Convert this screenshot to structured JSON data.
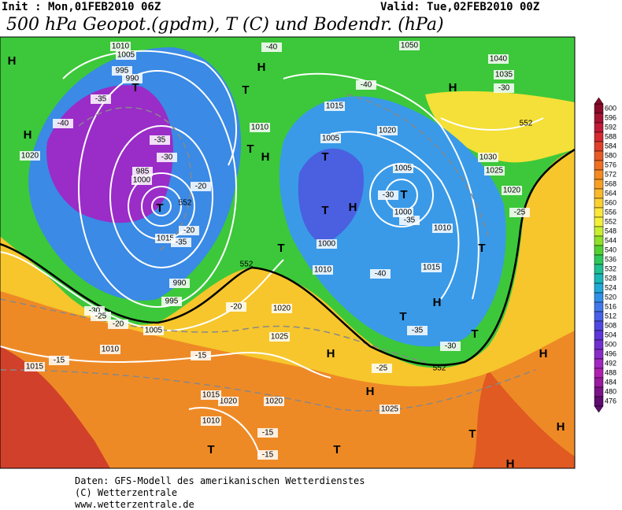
{
  "header": {
    "init": "Init : Mon,01FEB2010 06Z",
    "valid": "Valid: Tue,02FEB2010 00Z",
    "title": "500 hPa Geopot.(gpdm), T (C) und Bodendr. (hPa)"
  },
  "colorbar": {
    "labels": [
      600,
      596,
      592,
      588,
      584,
      580,
      576,
      572,
      568,
      564,
      560,
      556,
      552,
      548,
      544,
      540,
      536,
      532,
      528,
      524,
      520,
      516,
      512,
      508,
      504,
      500,
      496,
      492,
      488,
      484,
      480,
      476
    ],
    "colors": [
      "#8a0a2a",
      "#a81232",
      "#c01a36",
      "#d42a30",
      "#e0402a",
      "#e85a26",
      "#f07024",
      "#f48a22",
      "#f8a024",
      "#fab82a",
      "#fcd030",
      "#fde63a",
      "#f4f03a",
      "#c8ee30",
      "#8ee028",
      "#52d22e",
      "#2ec85a",
      "#20c090",
      "#18b8b8",
      "#20a8d8",
      "#3090e8",
      "#4078ec",
      "#4860e8",
      "#5048e0",
      "#5c36d8",
      "#7030d0",
      "#8a2cc8",
      "#a028c0",
      "#b020b0",
      "#9a1aa0",
      "#7a1488",
      "#600c70"
    ]
  },
  "map_labels": [
    "H",
    "H",
    "H",
    "H",
    "H",
    "H",
    "H",
    "H",
    "H",
    "H",
    "H",
    "H",
    "T",
    "T",
    "T",
    "T",
    "T",
    "T",
    "T",
    "T",
    "T",
    "T",
    "T",
    "T",
    "T",
    "T",
    "1010",
    "1005",
    "995",
    "990",
    "1020",
    "1030",
    "1040",
    "1035",
    "1050",
    "1025",
    "1020",
    "1015",
    "1010",
    "1005",
    "1000",
    "985",
    "1000",
    "1005",
    "1010",
    "1015",
    "1020",
    "1025",
    "1020",
    "1015",
    "1010",
    "1020",
    "1025",
    "1015",
    "1010",
    "1020",
    "1015",
    "1010",
    "1005",
    "1000",
    "995",
    "990",
    "-40",
    "-35",
    "-40",
    "-35",
    "-30",
    "-25",
    "-20",
    "-15",
    "-15",
    "-15",
    "-20",
    "-25",
    "-30",
    "-35",
    "-40",
    "-35",
    "-30",
    "-25",
    "-20",
    "-15",
    "-30",
    "-35",
    "-40",
    "-30",
    "-20",
    "552",
    "552",
    "552",
    "552"
  ],
  "footer": {
    "line1": "Daten: GFS-Modell des amerikanischen Wetterdienstes",
    "line2": "(C) Wetterzentrale",
    "line3": "www.wetterzentrale.de"
  }
}
